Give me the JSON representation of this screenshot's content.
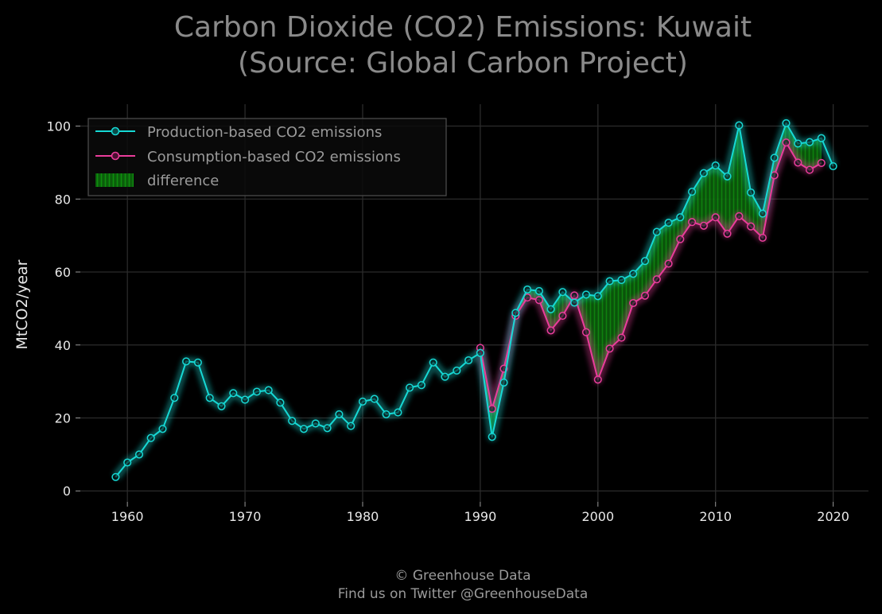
{
  "chart_data": {
    "type": "line",
    "title": [
      "Carbon Dioxide (CO2) Emissions: Kuwait",
      "(Source: Global Carbon Project)"
    ],
    "xlabel": "",
    "ylabel": "MtCO2/year",
    "xlim": [
      1956,
      2023
    ],
    "ylim": [
      -3,
      106
    ],
    "xticks": [
      1960,
      1970,
      1980,
      1990,
      2000,
      2010,
      2020
    ],
    "yticks": [
      0,
      20,
      40,
      60,
      80,
      100
    ],
    "grid": true,
    "legend_position": "top-left",
    "series": [
      {
        "name": "Production-based CO2 emissions",
        "color": "#16d9d5",
        "x": [
          1959,
          1960,
          1961,
          1962,
          1963,
          1964,
          1965,
          1966,
          1967,
          1968,
          1969,
          1970,
          1971,
          1972,
          1973,
          1974,
          1975,
          1976,
          1977,
          1978,
          1979,
          1980,
          1981,
          1982,
          1983,
          1984,
          1985,
          1986,
          1987,
          1988,
          1989,
          1990,
          1991,
          1992,
          1993,
          1994,
          1995,
          1996,
          1997,
          1998,
          1999,
          2000,
          2001,
          2002,
          2003,
          2004,
          2005,
          2006,
          2007,
          2008,
          2009,
          2010,
          2011,
          2012,
          2013,
          2014,
          2015,
          2016,
          2017,
          2018,
          2019,
          2020
        ],
        "values": [
          3.8,
          7.8,
          10,
          14.5,
          17,
          25.5,
          35.5,
          35.2,
          25.5,
          23.2,
          26.8,
          25,
          27.2,
          27.6,
          24.2,
          19.2,
          17,
          18.5,
          17.2,
          21,
          17.8,
          24.5,
          25.2,
          21,
          21.5,
          28.3,
          29,
          35.2,
          31.3,
          33,
          35.8,
          37.8,
          14.8,
          29.7,
          48.8,
          55.2,
          54.8,
          49.8,
          54.5,
          51.6,
          53.8,
          53.4,
          57.5,
          57.8,
          59.5,
          63,
          71,
          73.5,
          75,
          82,
          87.1,
          89.2,
          86.2,
          100.2,
          81.8,
          76,
          91.3,
          100.8,
          95.2,
          95.6,
          96.7,
          89
        ]
      },
      {
        "name": "Consumption-based CO2 emissions",
        "color": "#ea3d9b",
        "x": [
          1990,
          1991,
          1992,
          1993,
          1994,
          1995,
          1996,
          1997,
          1998,
          1999,
          2000,
          2001,
          2002,
          2003,
          2004,
          2005,
          2006,
          2007,
          2008,
          2009,
          2010,
          2011,
          2012,
          2013,
          2014,
          2015,
          2016,
          2017,
          2018,
          2019
        ],
        "values": [
          39.2,
          22.5,
          33.5,
          48,
          53,
          52.3,
          44,
          48,
          53.6,
          43.5,
          30.5,
          39,
          42,
          51.5,
          53.5,
          58,
          62.3,
          69,
          73.7,
          72.7,
          75,
          70.5,
          75.3,
          72.5,
          69.4,
          86.5,
          95.5,
          90,
          88,
          89.9
        ]
      }
    ],
    "legend_entries": [
      "Production-based CO2 emissions",
      "Consumption-based CO2 emissions",
      "difference"
    ],
    "difference_color": "#0b7a0b",
    "footer": [
      "© Greenhouse Data",
      "Find us on Twitter @GreenhouseData"
    ]
  }
}
